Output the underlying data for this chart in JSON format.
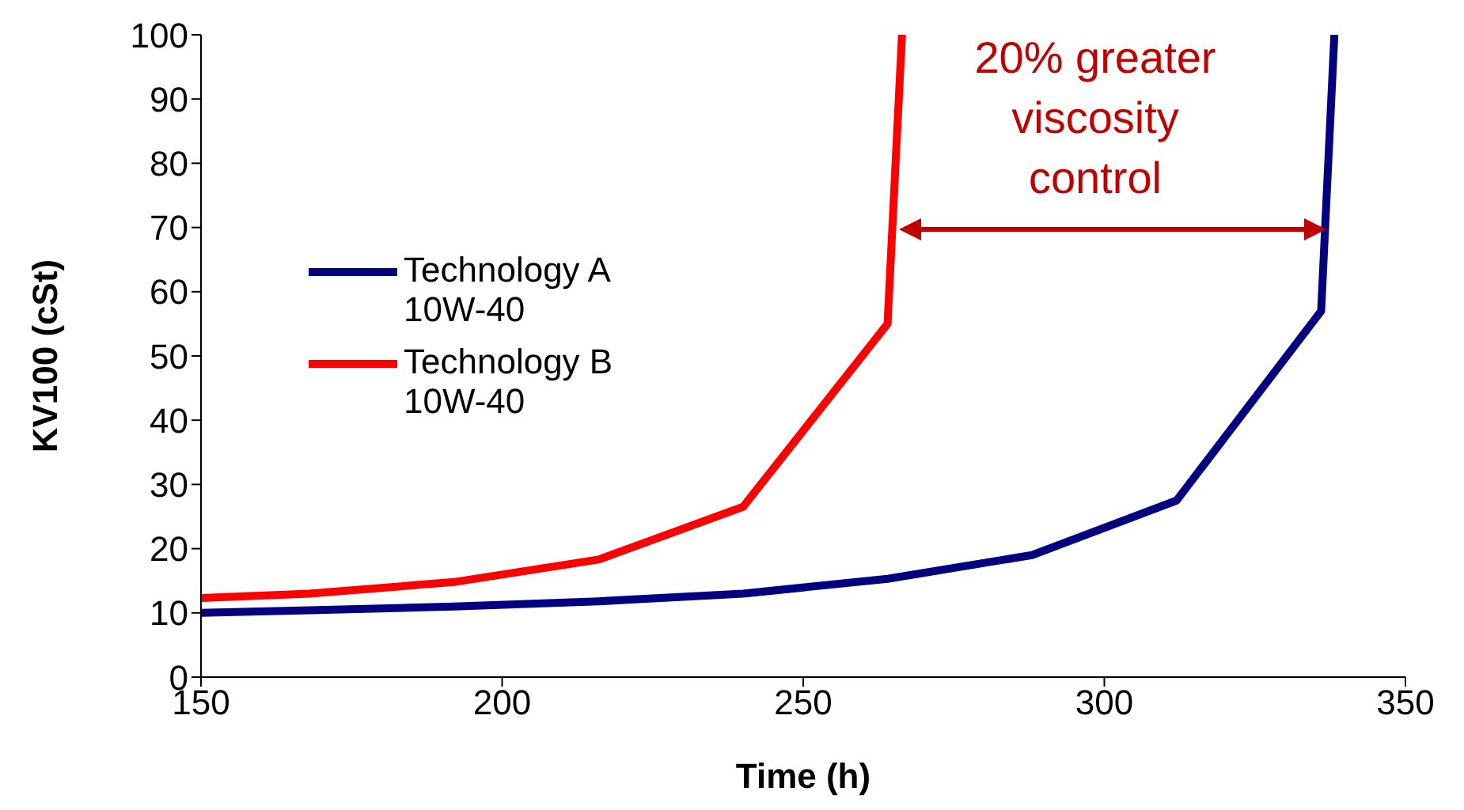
{
  "chart_data": {
    "type": "line",
    "xlabel": "Time (h)",
    "ylabel": "KV100 (cSt)",
    "xlim": [
      150,
      350
    ],
    "xticks": [
      150,
      200,
      250,
      300,
      350
    ],
    "ylim": [
      0,
      100
    ],
    "yticks": [
      0,
      10,
      20,
      30,
      40,
      50,
      60,
      70,
      80,
      90,
      100
    ],
    "legend": "left",
    "marker": "none",
    "line_style": "solid",
    "annotations": [
      "20% greater\nviscosity\ncontrol"
    ],
    "series": [
      {
        "name": "Technology A\n10W-40",
        "color": "#000080",
        "x": [
          150,
          168,
          192,
          216,
          240,
          264,
          288,
          312,
          336,
          338.2
        ],
        "values": [
          10,
          10.4,
          11,
          11.8,
          13,
          15.3,
          19,
          27.5,
          57,
          100
        ]
      },
      {
        "name": "Technology B\n10W-40",
        "color": "#ff0000",
        "x": [
          150,
          168,
          192,
          216,
          240,
          264,
          266.4
        ],
        "values": [
          12.3,
          13,
          14.8,
          18.3,
          26.5,
          55,
          100
        ]
      }
    ]
  }
}
